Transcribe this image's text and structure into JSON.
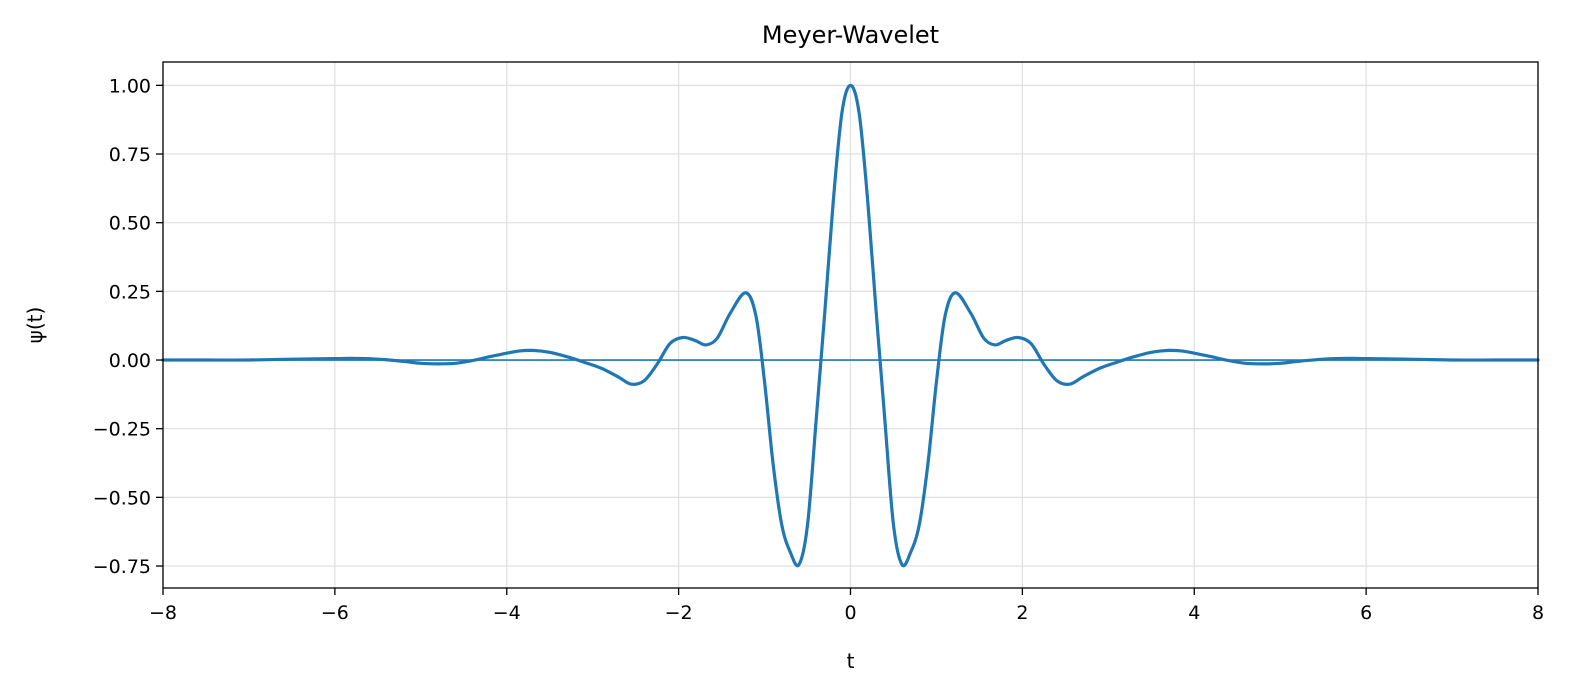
{
  "chart_data": {
    "type": "line",
    "title": "Meyer-Wavelet",
    "xlabel": "t",
    "ylabel": "ψ(t)",
    "xlim": [
      -8,
      8
    ],
    "ylim": [
      -0.83,
      1.085
    ],
    "x_ticks": [
      -8,
      -6,
      -4,
      -2,
      0,
      2,
      4,
      6,
      8
    ],
    "x_tick_labels": [
      "−8",
      "−6",
      "−4",
      "−2",
      "0",
      "2",
      "4",
      "6",
      "8"
    ],
    "y_ticks": [
      -0.75,
      -0.5,
      -0.25,
      0.0,
      0.25,
      0.5,
      0.75,
      1.0
    ],
    "y_tick_labels": [
      "−0.75",
      "−0.50",
      "−0.25",
      "0.00",
      "0.25",
      "0.50",
      "0.75",
      "1.00"
    ],
    "grid": true,
    "legend": "none",
    "colors": {
      "series": "#1f77b4",
      "grid": "#e0e0e0",
      "axes": "#000000"
    },
    "reference_line": {
      "y": 0.0
    },
    "series": [
      {
        "x": [
          -8,
          -7.5,
          -7,
          -6.5,
          -6,
          -5.8,
          -5.5,
          -5.2,
          -5,
          -4.8,
          -4.6,
          -4.4,
          -4.2,
          -4,
          -3.85,
          -3.7,
          -3.5,
          -3.3,
          -3.1,
          -2.9,
          -2.7,
          -2.55,
          -2.4,
          -2.25,
          -2.1,
          -1.95,
          -1.8,
          -1.68,
          -1.55,
          -1.4,
          -1.22,
          -1.1,
          -1.0,
          -0.9,
          -0.8,
          -0.7,
          -0.6,
          -0.5,
          -0.4,
          -0.3,
          -0.2,
          -0.1,
          0.0,
          0.1,
          0.2,
          0.3,
          0.4,
          0.5,
          0.6,
          0.7,
          0.8,
          0.9,
          1.0,
          1.1,
          1.22,
          1.4,
          1.55,
          1.68,
          1.8,
          1.95,
          2.1,
          2.25,
          2.4,
          2.55,
          2.7,
          2.9,
          3.1,
          3.3,
          3.5,
          3.7,
          3.85,
          4.0,
          4.2,
          4.4,
          4.6,
          4.8,
          5.0,
          5.2,
          5.5,
          5.8,
          6.0,
          6.5,
          7.0,
          7.5,
          8.0
        ],
        "y": [
          0.0,
          0.0,
          0.0,
          0.003,
          0.005,
          0.006,
          0.003,
          -0.005,
          -0.012,
          -0.014,
          -0.012,
          -0.002,
          0.012,
          0.025,
          0.033,
          0.035,
          0.028,
          0.012,
          -0.008,
          -0.03,
          -0.062,
          -0.088,
          -0.075,
          -0.015,
          0.06,
          0.082,
          0.07,
          0.055,
          0.08,
          0.17,
          0.245,
          0.16,
          -0.08,
          -0.38,
          -0.6,
          -0.7,
          -0.745,
          -0.6,
          -0.22,
          0.17,
          0.58,
          0.9,
          1.0,
          0.9,
          0.58,
          0.17,
          -0.22,
          -0.6,
          -0.745,
          -0.7,
          -0.6,
          -0.38,
          -0.08,
          0.16,
          0.245,
          0.17,
          0.08,
          0.055,
          0.07,
          0.082,
          0.06,
          -0.015,
          -0.075,
          -0.088,
          -0.062,
          -0.03,
          -0.008,
          0.012,
          0.028,
          0.035,
          0.033,
          0.025,
          0.012,
          -0.002,
          -0.012,
          -0.014,
          -0.012,
          -0.005,
          0.003,
          0.006,
          0.005,
          0.003,
          0.0,
          0.0,
          0.0
        ]
      }
    ]
  }
}
